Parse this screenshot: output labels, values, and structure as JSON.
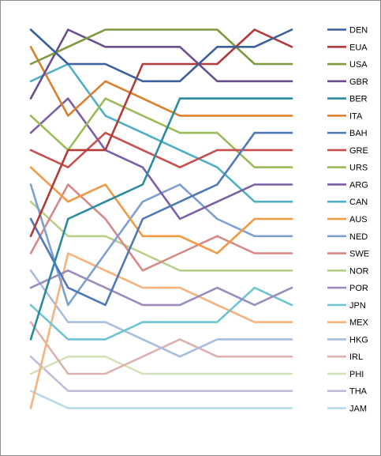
{
  "chart_data": {
    "type": "line",
    "title": "",
    "xlabel": "",
    "ylabel": "",
    "grid": false,
    "legend_position": "right",
    "x": [
      1,
      2,
      3,
      4,
      5,
      6,
      7,
      8
    ],
    "ylim": [
      1,
      23
    ],
    "y_inverted": true,
    "series": [
      {
        "name": "DEN",
        "color": "#3c5f9e",
        "values": [
          1,
          3,
          3,
          4,
          4,
          2,
          2,
          1
        ]
      },
      {
        "name": "EUA",
        "color": "#b03b38",
        "values": [
          13,
          8,
          8,
          3,
          3,
          3,
          1,
          2
        ]
      },
      {
        "name": "USA",
        "color": "#7f9a3e",
        "values": [
          3,
          2,
          1,
          1,
          1,
          1,
          3,
          3
        ]
      },
      {
        "name": "GBR",
        "color": "#6a4f8e",
        "values": [
          5,
          1,
          2,
          2,
          2,
          4,
          4,
          4
        ]
      },
      {
        "name": "BER",
        "color": "#2b8aa0",
        "values": [
          19,
          12,
          11,
          10,
          5,
          5,
          5,
          5
        ]
      },
      {
        "name": "ITA",
        "color": "#d9802e",
        "values": [
          2,
          6,
          4,
          5,
          6,
          6,
          6,
          6
        ]
      },
      {
        "name": "BAH",
        "color": "#4f79b6",
        "values": [
          12,
          16,
          17,
          12,
          11,
          10,
          7,
          7
        ]
      },
      {
        "name": "GRE",
        "color": "#c5504e",
        "values": [
          8,
          9,
          7,
          8,
          9,
          8,
          8,
          8
        ]
      },
      {
        "name": "URS",
        "color": "#9bbb59",
        "values": [
          6,
          8,
          5,
          6,
          7,
          7,
          9,
          9
        ]
      },
      {
        "name": "ARG",
        "color": "#7b5fa5",
        "values": [
          7,
          5,
          8,
          9,
          12,
          11,
          10,
          10
        ]
      },
      {
        "name": "CAN",
        "color": "#4fafc6",
        "values": [
          4,
          3,
          6,
          7,
          8,
          9,
          11,
          11
        ]
      },
      {
        "name": "AUS",
        "color": "#f19a43",
        "values": [
          9,
          11,
          10,
          13,
          13,
          14,
          12,
          12
        ]
      },
      {
        "name": "NED",
        "color": "#7e9fd1",
        "values": [
          10,
          17,
          14,
          11,
          10,
          12,
          13,
          13
        ]
      },
      {
        "name": "SWE",
        "color": "#d68987",
        "values": [
          14,
          10,
          12,
          15,
          14,
          13,
          14,
          14
        ]
      },
      {
        "name": "NOR",
        "color": "#b6d08a",
        "values": [
          11,
          13,
          13,
          14,
          15,
          15,
          15,
          15
        ]
      },
      {
        "name": "POR",
        "color": "#9c8bbd",
        "values": [
          16,
          15,
          16,
          17,
          17,
          16,
          17,
          16
        ]
      },
      {
        "name": "JPN",
        "color": "#6ec3d4",
        "values": [
          17,
          19,
          19,
          18,
          18,
          18,
          16,
          17
        ]
      },
      {
        "name": "MEX",
        "color": "#f7b27c",
        "values": [
          23,
          14,
          15,
          16,
          16,
          17,
          18,
          18
        ]
      },
      {
        "name": "HKG",
        "color": "#a9bde0",
        "values": [
          15,
          18,
          18,
          19,
          20,
          19,
          19,
          19
        ]
      },
      {
        "name": "IRL",
        "color": "#dcb1b0",
        "values": [
          18,
          21,
          21,
          20,
          19,
          20,
          20,
          20
        ]
      },
      {
        "name": "PHI",
        "color": "#d3e2b8",
        "values": [
          21,
          20,
          20,
          21,
          21,
          21,
          21,
          21
        ]
      },
      {
        "name": "THA",
        "color": "#c3b9d8",
        "values": [
          20,
          22,
          22,
          22,
          22,
          22,
          22,
          22
        ]
      },
      {
        "name": "JAM",
        "color": "#b5dbe5",
        "values": [
          22,
          23,
          23,
          23,
          23,
          23,
          23,
          23
        ]
      }
    ]
  }
}
